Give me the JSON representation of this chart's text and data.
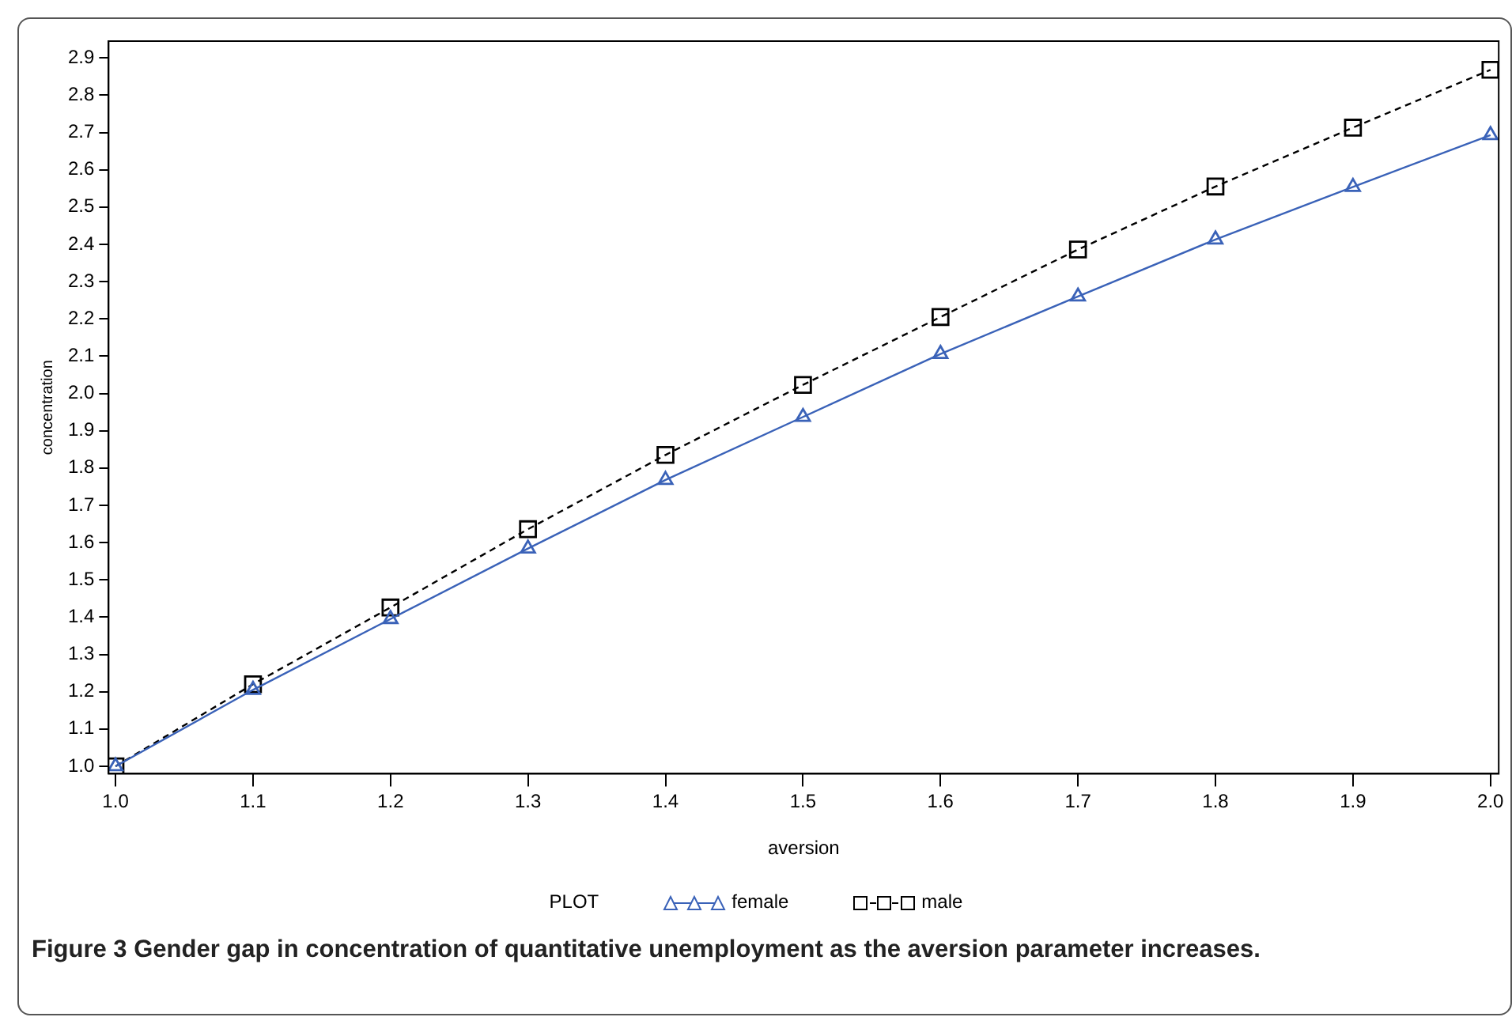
{
  "chart_data": {
    "type": "line",
    "xlabel": "aversion",
    "ylabel": "concentration",
    "legend_title": "PLOT",
    "legend": "bottom",
    "grid": false,
    "annotations": [
      "Figure 3 Gender gap in concentration of quantitative unemployment as the aversion parameter increases."
    ],
    "x": [
      1.0,
      1.1,
      1.2,
      1.3,
      1.4,
      1.5,
      1.6,
      1.7,
      1.8,
      1.9,
      2.0
    ],
    "xlim": [
      0.995,
      2.006
    ],
    "xticks": [
      {
        "value": 1,
        "label": "1.0"
      },
      1.1,
      1.2,
      1.3,
      1.4,
      1.5,
      1.6,
      1.7,
      1.8,
      1.9,
      {
        "value": 2,
        "label": "2.0"
      }
    ],
    "ylim": [
      0.98,
      2.945
    ],
    "yticks": [
      {
        "value": 1,
        "label": "1.0"
      },
      1.1,
      1.2,
      1.3,
      1.4,
      1.5,
      1.6,
      1.7,
      1.8,
      1.9,
      {
        "value": 2,
        "label": "2.0"
      },
      2.1,
      2.2,
      2.3,
      2.4,
      2.5,
      2.6,
      2.7,
      2.8,
      2.9
    ],
    "series": [
      {
        "name": "female",
        "color": "#3a62b8",
        "marker": "triangle",
        "line_style": "solid",
        "values": [
          1.0,
          1.205,
          1.395,
          1.584,
          1.768,
          1.937,
          2.106,
          2.26,
          2.413,
          2.554,
          2.693
        ]
      },
      {
        "name": "male",
        "color": "#000000",
        "marker": "square",
        "line_style": "dashed",
        "values": [
          1.0,
          1.22,
          1.426,
          1.636,
          1.835,
          2.023,
          2.205,
          2.386,
          2.555,
          2.713,
          2.868
        ]
      }
    ]
  }
}
